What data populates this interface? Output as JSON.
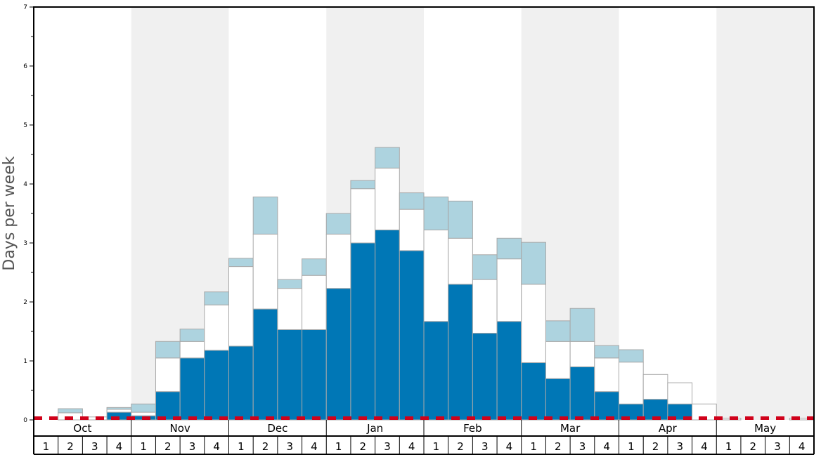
{
  "chart_data": {
    "type": "bar",
    "stacked": true,
    "title": "",
    "xlabel": "",
    "ylabel": "Days per week",
    "ylim": [
      0,
      7
    ],
    "yticks": [
      "0",
      "1",
      "2",
      "3",
      "4",
      "5",
      "6",
      "7"
    ],
    "months": [
      "Oct",
      "Nov",
      "Dec",
      "Jan",
      "Feb",
      "Mar",
      "Apr",
      "May"
    ],
    "weeks": [
      "1",
      "2",
      "3",
      "4"
    ],
    "shaded_months": [
      "Nov",
      "Jan",
      "Mar",
      "May"
    ],
    "reference_line": {
      "value": 0.03,
      "style": "dashed",
      "color": "#d0021b"
    },
    "series": [
      {
        "key": "dark",
        "color": "#0077b6",
        "values": [
          0,
          0,
          0,
          0.13,
          0.07,
          0.48,
          1.05,
          1.18,
          1.25,
          1.88,
          1.53,
          1.53,
          2.23,
          3.0,
          3.22,
          2.87,
          1.67,
          2.3,
          1.47,
          1.67,
          0.97,
          0.7,
          0.9,
          0.48,
          0.27,
          0.35,
          0.27,
          0,
          0,
          0,
          0,
          0
        ]
      },
      {
        "key": "white",
        "color": "#ffffff",
        "values": [
          0,
          0.12,
          0.05,
          0.05,
          0.06,
          0.57,
          0.28,
          0.77,
          1.35,
          1.27,
          0.7,
          0.92,
          0.92,
          0.92,
          1.05,
          0.7,
          1.55,
          0.78,
          0.91,
          1.06,
          1.33,
          0.63,
          0.43,
          0.57,
          0.71,
          0.42,
          0.36,
          0.27,
          0.03,
          0,
          0,
          0.03
        ]
      },
      {
        "key": "light",
        "color": "#add3df",
        "values": [
          0,
          0.07,
          0,
          0.03,
          0.14,
          0.28,
          0.21,
          0.22,
          0.14,
          0.63,
          0.15,
          0.28,
          0.35,
          0.14,
          0.35,
          0.28,
          0.56,
          0.63,
          0.42,
          0.35,
          0.71,
          0.35,
          0.56,
          0.21,
          0.21,
          0,
          0,
          0,
          0,
          0,
          0,
          0
        ]
      }
    ]
  }
}
